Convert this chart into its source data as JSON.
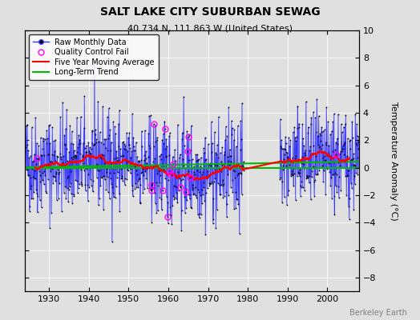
{
  "title": "SALT LAKE CITY SUBURBAN SEWAG",
  "subtitle": "40.734 N, 111.863 W (United States)",
  "ylabel": "Temperature Anomaly (°C)",
  "xlabel_credit": "Berkeley Earth",
  "ylim": [
    -9,
    10
  ],
  "yticks": [
    -8,
    -6,
    -4,
    -2,
    0,
    2,
    4,
    6,
    8,
    10
  ],
  "year_start": 1924,
  "year_end": 2008,
  "xticks": [
    1930,
    1940,
    1950,
    1960,
    1970,
    1980,
    1990,
    2000
  ],
  "seed": 42,
  "bg_color": "#e0e0e0",
  "raw_line_color": "#3333ff",
  "raw_marker_color": "#000000",
  "ma_color": "#ff0000",
  "trend_color": "#00bb00",
  "qc_color": "#ff00ff",
  "zero_line_color": "#00bb00"
}
